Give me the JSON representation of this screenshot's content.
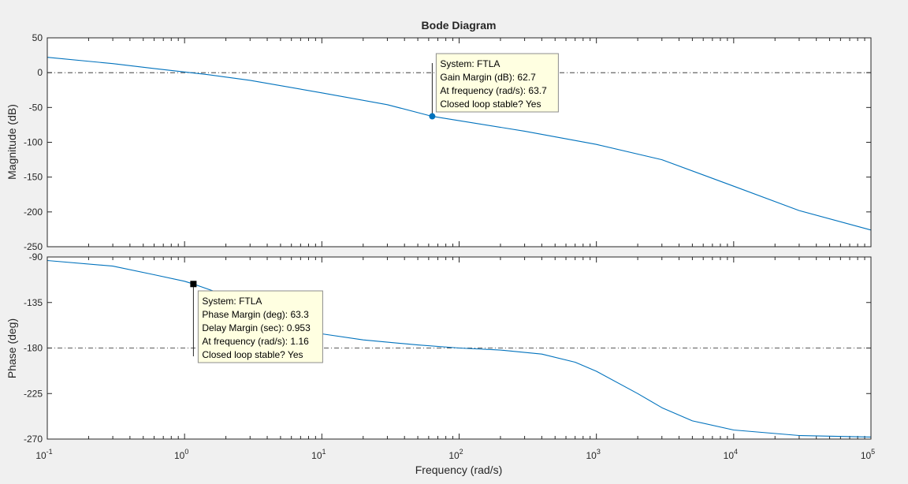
{
  "chart_data": {
    "type": "line",
    "title": "Bode Diagram",
    "xlabel": "Frequency  (rad/s)",
    "x_scale": "log",
    "xlim": [
      0.1,
      100000
    ],
    "x_ticks": [
      {
        "value": 0.1,
        "base": "10",
        "exp": "-1"
      },
      {
        "value": 1,
        "base": "10",
        "exp": "0"
      },
      {
        "value": 10,
        "base": "10",
        "exp": "1"
      },
      {
        "value": 100,
        "base": "10",
        "exp": "2"
      },
      {
        "value": 1000,
        "base": "10",
        "exp": "3"
      },
      {
        "value": 10000,
        "base": "10",
        "exp": "4"
      },
      {
        "value": 100000,
        "base": "10",
        "exp": "5"
      }
    ],
    "series_color": "#0072bd",
    "grid": false,
    "panels": [
      {
        "name": "magnitude",
        "ylabel": "Magnitude (dB)",
        "ylim": [
          -250,
          50
        ],
        "y_ticks": [
          50,
          0,
          -50,
          -100,
          -150,
          -200,
          -250
        ],
        "reference_line": 0,
        "points": [
          [
            0.1,
            22
          ],
          [
            0.3,
            13
          ],
          [
            0.6,
            6
          ],
          [
            1,
            1
          ],
          [
            1.5,
            -3
          ],
          [
            3,
            -11
          ],
          [
            10,
            -29
          ],
          [
            30,
            -46
          ],
          [
            63.7,
            -62.7
          ],
          [
            100,
            -69
          ],
          [
            300,
            -84
          ],
          [
            1000,
            -103
          ],
          [
            3000,
            -125
          ],
          [
            10000,
            -163
          ],
          [
            30000,
            -198
          ],
          [
            100000,
            -226
          ]
        ],
        "marker": {
          "x": 63.7,
          "y": -62.7,
          "shape": "circle",
          "color": "#0072bd"
        },
        "datatip": [
          "System: FTLA",
          "Gain Margin (dB): 62.7",
          "At frequency (rad/s): 63.7",
          "Closed loop stable? Yes"
        ]
      },
      {
        "name": "phase",
        "ylabel": "Phase (deg)",
        "ylim": [
          -270,
          -90
        ],
        "y_ticks": [
          -90,
          -135,
          -180,
          -225,
          -270
        ],
        "reference_line": -180,
        "points": [
          [
            0.1,
            -93.5
          ],
          [
            0.3,
            -99
          ],
          [
            0.6,
            -107.5
          ],
          [
            1,
            -114
          ],
          [
            1.16,
            -116.7
          ],
          [
            2,
            -128
          ],
          [
            3,
            -141
          ],
          [
            10,
            -166
          ],
          [
            20,
            -172
          ],
          [
            50,
            -177
          ],
          [
            100,
            -180
          ],
          [
            200,
            -182
          ],
          [
            400,
            -186
          ],
          [
            700,
            -194
          ],
          [
            1000,
            -203
          ],
          [
            2000,
            -225
          ],
          [
            3000,
            -239
          ],
          [
            5000,
            -252
          ],
          [
            10000,
            -261
          ],
          [
            30000,
            -266.5
          ],
          [
            100000,
            -268
          ]
        ],
        "marker": {
          "x": 1.16,
          "y": -116.7,
          "shape": "square",
          "color": "#000000"
        },
        "datatip": [
          "System: FTLA",
          "Phase Margin (deg): 63.3",
          "Delay Margin (sec): 0.953",
          "At frequency (rad/s): 1.16",
          "Closed loop stable? Yes"
        ]
      }
    ]
  }
}
